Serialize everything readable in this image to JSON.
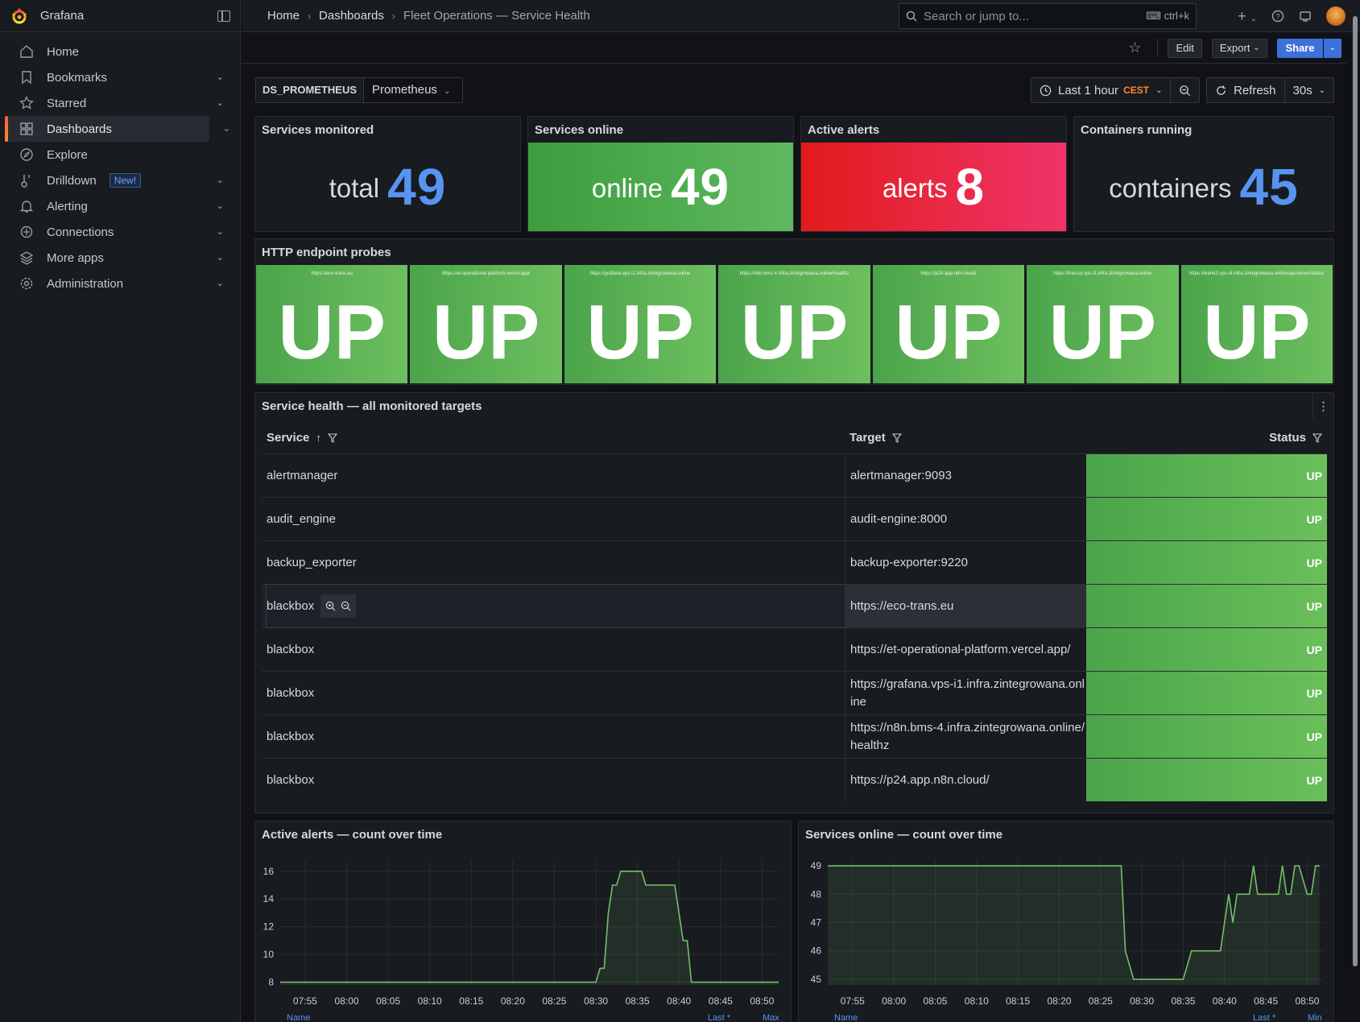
{
  "sidebar": {
    "brand": "Grafana",
    "items": [
      {
        "label": "Home",
        "icon": "home-icon",
        "chevron": false
      },
      {
        "label": "Bookmarks",
        "icon": "bookmark-icon",
        "chevron": true
      },
      {
        "label": "Starred",
        "icon": "star-icon",
        "chevron": true
      },
      {
        "label": "Dashboards",
        "icon": "dashboards-icon",
        "chevron": true,
        "active": true
      },
      {
        "label": "Explore",
        "icon": "compass-icon",
        "chevron": false
      },
      {
        "label": "Drilldown",
        "icon": "drilldown-icon",
        "chevron": true,
        "badge": "New!"
      },
      {
        "label": "Alerting",
        "icon": "bell-icon",
        "chevron": true
      },
      {
        "label": "Connections",
        "icon": "connections-icon",
        "chevron": true
      },
      {
        "label": "More apps",
        "icon": "layers-icon",
        "chevron": true
      },
      {
        "label": "Administration",
        "icon": "gear-icon",
        "chevron": true
      }
    ]
  },
  "topbar": {
    "breadcrumbs": [
      "Home",
      "Dashboards",
      "Fleet Operations — Service Health"
    ],
    "search_placeholder": "Search or jump to...",
    "search_shortcut": "ctrl+k"
  },
  "toolbar": {
    "edit_label": "Edit",
    "export_label": "Export",
    "share_label": "Share"
  },
  "variables": {
    "ds_label": "DS_PROMETHEUS",
    "ds_value": "Prometheus"
  },
  "time_picker": {
    "range": "Last 1 hour",
    "timezone": "CEST",
    "refresh_label": "Refresh",
    "interval": "30s"
  },
  "stats": [
    {
      "title": "Services monitored",
      "prefix": "total",
      "value": "49",
      "style": "plain"
    },
    {
      "title": "Services online",
      "prefix": "online",
      "value": "49",
      "style": "green"
    },
    {
      "title": "Active alerts",
      "prefix": "alerts",
      "value": "8",
      "style": "red"
    },
    {
      "title": "Containers running",
      "prefix": "containers",
      "value": "45",
      "style": "plain"
    }
  ],
  "probes_panel": {
    "title": "HTTP endpoint probes",
    "probes": [
      {
        "url": "https://eco-trans.eu",
        "status": "UP"
      },
      {
        "url": "https://et-operational-platform.vercel.app/",
        "status": "UP"
      },
      {
        "url": "https://grafana.vps-i1.infra.zintegrowana.online",
        "status": "UP"
      },
      {
        "url": "https://n8n.bms-4.infra.zintegrowana.online/healthz",
        "status": "UP"
      },
      {
        "url": "https://p24.app.n8n.cloud/",
        "status": "UP"
      },
      {
        "url": "https://traccar.vps-i1.infra.zintegrowana.online",
        "status": "UP"
      },
      {
        "url": "https://wahe2.vps-i4.infra.zintegrowana.online/api/server/status",
        "status": "UP"
      }
    ]
  },
  "table_panel": {
    "title": "Service health — all monitored targets",
    "columns": {
      "service": "Service",
      "target": "Target",
      "status": "Status"
    },
    "rows": [
      {
        "service": "alertmanager",
        "target": "alertmanager:9093",
        "status": "UP"
      },
      {
        "service": "audit_engine",
        "target": "audit-engine:8000",
        "status": "UP"
      },
      {
        "service": "backup_exporter",
        "target": "backup-exporter:9220",
        "status": "UP"
      },
      {
        "service": "blackbox",
        "target": "https://eco-trans.eu",
        "status": "UP",
        "hover": true
      },
      {
        "service": "blackbox",
        "target": "https://et-operational-platform.vercel.app/",
        "status": "UP"
      },
      {
        "service": "blackbox",
        "target": "https://grafana.vps-i1.infra.zintegrowana.online",
        "status": "UP"
      },
      {
        "service": "blackbox",
        "target": "https://n8n.bms-4.infra.zintegrowana.online/healthz",
        "status": "UP"
      },
      {
        "service": "blackbox",
        "target": "https://p24.app.n8n.cloud/",
        "status": "UP"
      }
    ]
  },
  "chart_data": [
    {
      "type": "line",
      "title": "Active alerts — count over time",
      "x_ticks": [
        "07:55",
        "08:00",
        "08:05",
        "08:10",
        "08:15",
        "08:20",
        "08:25",
        "08:30",
        "08:35",
        "08:40",
        "08:45",
        "08:50"
      ],
      "y_ticks": [
        8,
        10,
        12,
        14,
        16
      ],
      "ylim": [
        7.8,
        16.8
      ],
      "xlim": [
        "07:52",
        "08:52"
      ],
      "series": [
        {
          "color": "#73bf69",
          "x": [
            "07:52",
            "08:30",
            "08:30.5",
            "08:31",
            "08:31.5",
            "08:32",
            "08:32.5",
            "08:33",
            "08:35.5",
            "08:36",
            "08:39.5",
            "08:40",
            "08:40.5",
            "08:41",
            "08:41.5",
            "08:52"
          ],
          "values": [
            8,
            8,
            9,
            9,
            13,
            15,
            15,
            16,
            16,
            15,
            15,
            13,
            11,
            11,
            8,
            8
          ]
        }
      ],
      "legend_labels": [
        "Name",
        "Last *",
        "Max"
      ]
    },
    {
      "type": "line",
      "title": "Services online — count over time",
      "x_ticks": [
        "07:55",
        "08:00",
        "08:05",
        "08:10",
        "08:15",
        "08:20",
        "08:25",
        "08:30",
        "08:35",
        "08:40",
        "08:45",
        "08:50"
      ],
      "y_ticks": [
        45,
        46,
        47,
        48,
        49
      ],
      "ylim": [
        44.8,
        49.2
      ],
      "xlim": [
        "07:52",
        "08:52"
      ],
      "series": [
        {
          "color": "#73bf69",
          "x": [
            "07:52",
            "08:27.5",
            "08:28",
            "08:29",
            "08:35",
            "08:36",
            "08:39.5",
            "08:40",
            "08:40.5",
            "08:41",
            "08:41.5",
            "08:42",
            "08:43",
            "08:43.5",
            "08:44",
            "08:46.5",
            "08:47",
            "08:47.5",
            "08:48",
            "08:48.5",
            "08:49",
            "08:50",
            "08:50.5",
            "08:51",
            "08:51.5"
          ],
          "values": [
            49,
            49,
            46,
            45,
            45,
            46,
            46,
            47,
            48,
            47,
            48,
            48,
            48,
            49,
            48,
            48,
            49,
            48,
            48,
            49,
            49,
            48,
            48,
            49,
            49
          ]
        }
      ],
      "legend_labels": [
        "Name",
        "Last *",
        "Min"
      ]
    }
  ]
}
